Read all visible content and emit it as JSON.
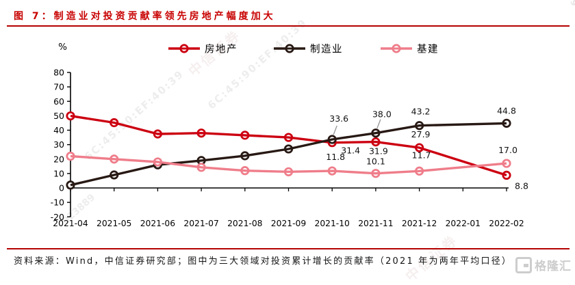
{
  "header": {
    "title": "图 7：制造业对投资贡献率领先房地产幅度加大"
  },
  "footer": {
    "source": "资料来源：Wind，中信证券研究部；图中为三大领域对投资累计增长的贡献率（2021 年为两年平均口径）"
  },
  "branding": {
    "logo_text": "格隆汇"
  },
  "watermarks": {
    "mac": "6C:45:90:EF:40:39",
    "code": "023889",
    "brand": "中信证券"
  },
  "colors": {
    "accent_red": "#b40000",
    "title_red": "#c80000",
    "axis_black": "#000000",
    "leader_gray": "#9a9a9a"
  },
  "chart_data": {
    "type": "line",
    "unit_label": "%",
    "categories": [
      "2021-04",
      "2021-05",
      "2021-06",
      "2021-07",
      "2021-08",
      "2021-09",
      "2021-10",
      "2021-11",
      "2021-12",
      "2022-01",
      "2022-02"
    ],
    "ylim": [
      -20,
      80
    ],
    "y_ticks": [
      80,
      70,
      60,
      50,
      40,
      30,
      20,
      10,
      0,
      -10,
      -20
    ],
    "grid": false,
    "legend_position": "top",
    "series": [
      {
        "id": "real-estate",
        "name": "房地产",
        "color": "#cc0011",
        "values": [
          49.9,
          45.2,
          37.4,
          38.0,
          36.5,
          35.0,
          31.4,
          31.9,
          27.9,
          null,
          8.8
        ],
        "labels": [
          {
            "i": 6,
            "t": "31.4",
            "dx": 27,
            "dy": 12
          },
          {
            "i": 7,
            "t": "31.9",
            "dx": 4,
            "dy": 14
          },
          {
            "i": 8,
            "t": "27.9",
            "dx": 2,
            "dy": -19
          },
          {
            "i": 10,
            "t": "8.8",
            "dx": 22,
            "dy": 16
          }
        ]
      },
      {
        "id": "manufacturing",
        "name": "制造业",
        "color": "#281914",
        "values": [
          2.0,
          9.0,
          16.0,
          19.0,
          22.3,
          27.0,
          33.6,
          38.0,
          43.2,
          null,
          44.8
        ],
        "labels": [
          {
            "i": 6,
            "t": "33.6",
            "dx": 10,
            "dy": -30,
            "leader": true
          },
          {
            "i": 7,
            "t": "38.0",
            "dx": 9,
            "dy": -27,
            "leader": true
          },
          {
            "i": 8,
            "t": "43.2",
            "dx": 2,
            "dy": -20
          },
          {
            "i": 10,
            "t": "44.8",
            "dx": 0,
            "dy": -18
          }
        ]
      },
      {
        "id": "infrastructure",
        "name": "基建",
        "color": "#ef7d8a",
        "values": [
          22.0,
          20.0,
          18.0,
          14.3,
          12.0,
          11.2,
          11.8,
          10.1,
          11.7,
          null,
          17.0
        ],
        "labels": [
          {
            "i": 6,
            "t": "11.8",
            "dx": 5,
            "dy": -20
          },
          {
            "i": 7,
            "t": "10.1",
            "dx": 0,
            "dy": -17
          },
          {
            "i": 8,
            "t": "11.7",
            "dx": 3,
            "dy": -23
          },
          {
            "i": 10,
            "t": "17.0",
            "dx": 2,
            "dy": -19
          }
        ]
      }
    ]
  }
}
